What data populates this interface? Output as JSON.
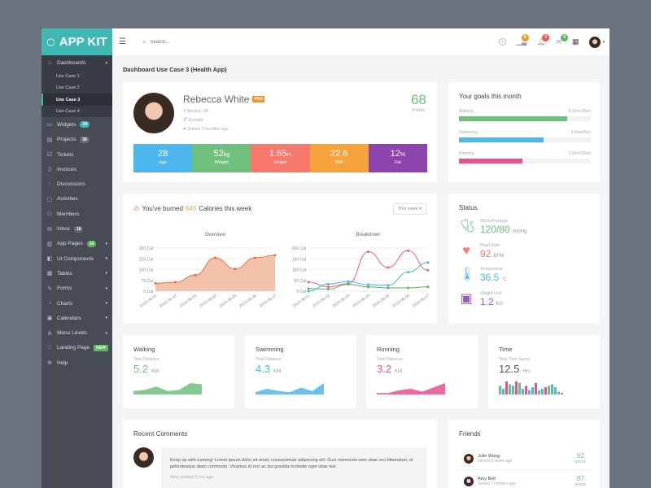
{
  "app": {
    "name": "APP KIT"
  },
  "sidebar": {
    "items": [
      {
        "label": "Dashboards",
        "icon": "home-icon",
        "expanded": true,
        "sub": [
          "Use Case 1",
          "Use Case 2",
          "Use Case 3",
          "Use Case 4"
        ],
        "active_sub": 2
      },
      {
        "label": "Widgets",
        "icon": "widgets-icon",
        "badge": "14",
        "badge_color": "#3fb8b3"
      },
      {
        "label": "Projects",
        "icon": "briefcase-icon",
        "badge": "56",
        "badge_color": "#666b75"
      },
      {
        "label": "Tickets",
        "icon": "checkbox-icon"
      },
      {
        "label": "Invoices",
        "icon": "invoice-icon"
      },
      {
        "label": "Discussions",
        "icon": "chat-icon"
      },
      {
        "label": "Activities",
        "icon": "activity-icon"
      },
      {
        "label": "Members",
        "icon": "users-icon"
      },
      {
        "label": "Inbox",
        "icon": "inbox-icon",
        "badge": "18",
        "badge_color": "#666b75"
      },
      {
        "label": "App Pages",
        "icon": "pages-icon",
        "badge": "14",
        "badge_color": "#5cb85c",
        "caret": true
      },
      {
        "label": "UI Components",
        "icon": "components-icon",
        "caret": true
      },
      {
        "label": "Tables",
        "icon": "table-icon",
        "caret": true
      },
      {
        "label": "Forms",
        "icon": "forms-icon",
        "caret": true
      },
      {
        "label": "Charts",
        "icon": "chart-icon",
        "caret": true
      },
      {
        "label": "Calendars",
        "icon": "calendar-icon",
        "caret": true
      },
      {
        "label": "Menu Levels",
        "icon": "sitemap-icon",
        "caret": true
      },
      {
        "label": "Landing Page",
        "icon": "heart-icon",
        "badge": "NEW",
        "badge_color": "#5cb85c"
      },
      {
        "label": "Help",
        "icon": "lifebuoy-icon"
      }
    ]
  },
  "header": {
    "search_placeholder": "Search...",
    "badges": [
      {
        "icon": "chart-icon",
        "count": "8",
        "color": "#f7931e"
      },
      {
        "icon": "bell-icon",
        "count": "3",
        "color": "#f0544f"
      },
      {
        "icon": "mail-icon",
        "count": "5",
        "color": "#5cb85c"
      }
    ]
  },
  "page_title": "Dashboard Use Case 3 (Health App)",
  "profile": {
    "name": "Rebecca White",
    "tag": "PRO",
    "location": "Bristol, UK",
    "gender": "Female",
    "joined": "Joined 2 months ago",
    "points": "68",
    "points_label": "Points",
    "stats": [
      {
        "value": "28",
        "unit": "",
        "label": "Age",
        "color": "#4db6ec"
      },
      {
        "value": "52",
        "unit": "kg",
        "label": "Weight",
        "color": "#6fc07c"
      },
      {
        "value": "1.65",
        "unit": "m",
        "label": "Height",
        "color": "#f6796b"
      },
      {
        "value": "22.6",
        "unit": "",
        "label": "BMI",
        "color": "#f7a23a"
      },
      {
        "value": "12",
        "unit": "%",
        "label": "Fat",
        "color": "#8e44ad"
      }
    ]
  },
  "goals": {
    "title": "Your goals this month",
    "items": [
      {
        "label": "Walking",
        "value": "8.2km/10km",
        "pct": 82,
        "color": "#6fc07c"
      },
      {
        "label": "Swimming",
        "value": "3.2km/5km",
        "pct": 64,
        "color": "#4db6ec"
      },
      {
        "label": "Running",
        "value": "9.5km/20km",
        "pct": 48,
        "color": "#ec4f8e"
      }
    ]
  },
  "calories": {
    "prefix": "You've burned",
    "value": "645",
    "suffix": "Calories this week",
    "filter": "This week"
  },
  "chart_data": [
    {
      "type": "area",
      "title": "Overview",
      "x": [
        "2015-06-01",
        "2015-06-02",
        "2015-06-03",
        "2015-06-04",
        "2015-06-05",
        "2015-06-06",
        "2015-06-07"
      ],
      "yticks": [
        "0 Cal",
        "75 Cal",
        "150 Cal",
        "225 Cal",
        "300 Cal"
      ],
      "ylim": [
        0,
        300
      ],
      "grid": true,
      "series": [
        {
          "values": [
            55,
            62,
            112,
            232,
            155,
            232,
            250
          ],
          "color": "#f26b3a"
        }
      ]
    },
    {
      "type": "line",
      "title": "Breakdown",
      "x": [
        "2015-06-01",
        "2015-06-02",
        "2015-06-03",
        "2015-06-04",
        "2015-06-05",
        "2015-06-06",
        "2015-06-07"
      ],
      "yticks": [
        "0 Cal",
        "50 Cal",
        "100 Cal",
        "150 Cal",
        "200 Cal"
      ],
      "ylim": [
        0,
        200
      ],
      "grid": true,
      "series": [
        {
          "values": [
            42,
            20,
            35,
            183,
            110,
            188,
            97
          ],
          "color": "#e5628d"
        },
        {
          "values": [
            0,
            33,
            45,
            30,
            28,
            88,
            133
          ],
          "color": "#3fb6ec"
        },
        {
          "values": [
            12,
            10,
            32,
            20,
            15,
            15,
            20
          ],
          "color": "#4cb84f"
        }
      ]
    }
  ],
  "status": {
    "title": "Status",
    "items": [
      {
        "label": "Blood Pressure",
        "value": "120/80",
        "unit": "mmHg",
        "color": "#6fc07c",
        "icon": "blood-pressure-icon"
      },
      {
        "label": "Heart Rate",
        "value": "92",
        "unit": "BPM",
        "color": "#f6796b",
        "icon": "heart-rate-icon"
      },
      {
        "label": "Temperature",
        "value": "36.5",
        "unit": "°C",
        "color": "#4db6ec",
        "icon": "thermometer-icon"
      },
      {
        "label": "Weight Lost",
        "value": "1.2",
        "unit": "KG",
        "color": "#9b59b6",
        "icon": "scale-icon"
      }
    ]
  },
  "activities": [
    {
      "title": "Walking",
      "sub": "Total Distance:",
      "value": "5.2",
      "unit": "KM",
      "color": "#6fc07c",
      "spark": [
        3,
        4,
        7,
        3,
        4,
        10,
        9
      ]
    },
    {
      "title": "Swimming",
      "sub": "Total Distance:",
      "value": "4.3",
      "unit": "KM",
      "color": "#4db6ec",
      "spark": [
        2,
        5,
        3,
        2,
        6,
        3,
        10
      ]
    },
    {
      "title": "Running",
      "sub": "Total Distance:",
      "value": "3.2",
      "unit": "KM",
      "color": "#ec4f8e",
      "spark": [
        1,
        1,
        3,
        4,
        2,
        5,
        8
      ]
    },
    {
      "title": "Time",
      "sub": "Total Time Spent:",
      "value": "12.5",
      "unit": "Hrs",
      "color": "#555555",
      "bars": [
        6,
        4,
        9,
        7,
        6,
        9,
        8,
        4,
        6,
        3,
        5,
        8,
        3,
        4,
        5,
        6,
        7,
        5,
        2,
        1
      ],
      "bar_colors": [
        "#6fc07c",
        "#4db6ec",
        "#ec4f8e",
        "#6fc07c",
        "#4db6ec",
        "#ec4f8e",
        "#6fc07c",
        "#4db6ec",
        "#ec4f8e",
        "#4db6ec",
        "#4db6ec",
        "#ec4f8e",
        "#6fc07c",
        "#4db6ec",
        "#ec4f8e",
        "#6fc07c",
        "#4db6ec",
        "#6fc07c",
        "#4db6ec",
        "#ec4f8e"
      ]
    }
  ],
  "comments": {
    "title": "Recent Comments",
    "items": [
      {
        "text": "Keep up with running! Lorem ipsum dolor sit amet, consectetuer adipiscing elit. Duis commodo sem vitae orci bibendum, et pellentesque diam commodo. Vivamus id orci ac dui gravida molestie eget vitae nisi.",
        "meta": "Amy posted 5 hrs ago"
      }
    ]
  },
  "friends": {
    "title": "Friends",
    "items": [
      {
        "name": "Julie Wang",
        "joined": "Joined 2 years ago",
        "points": "92",
        "points_label": "points"
      },
      {
        "name": "Amy Bell",
        "joined": "Joined 7 months ago",
        "points": "87",
        "points_label": "points"
      }
    ]
  }
}
